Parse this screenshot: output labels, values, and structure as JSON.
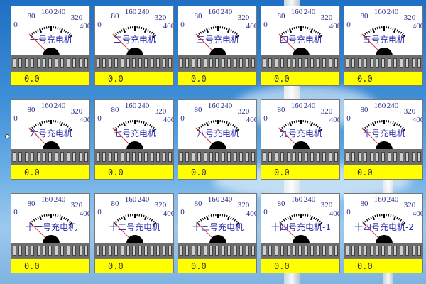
{
  "scale_labels": [
    "0",
    "80",
    "160",
    "240",
    "320",
    "400"
  ],
  "colors": {
    "value_bg": "#ffff00",
    "title": "#3030b0",
    "needle": "#d04040"
  },
  "gauges": [
    {
      "name": "一号充电机",
      "value": "0.0"
    },
    {
      "name": "二号充电机",
      "value": "0.0"
    },
    {
      "name": "三号充电机",
      "value": "0.0"
    },
    {
      "name": "四号充电机",
      "value": "0.0"
    },
    {
      "name": "五号充电机",
      "value": "0.0"
    },
    {
      "name": "六号充电机",
      "value": "0.0"
    },
    {
      "name": "七号充电机",
      "value": "0.0"
    },
    {
      "name": "八号充电机",
      "value": "0.0"
    },
    {
      "name": "九号充电机",
      "value": "0.0"
    },
    {
      "name": "十号充电机",
      "value": "0.0"
    },
    {
      "name": "十一号充电机",
      "value": "0.0"
    },
    {
      "name": "十二号充电机",
      "value": "0.0"
    },
    {
      "name": "十三号充电机",
      "value": "0.0"
    },
    {
      "name": "十四号充电机-1",
      "value": "0.0"
    },
    {
      "name": "十四号充电机-2",
      "value": "0.0"
    }
  ]
}
